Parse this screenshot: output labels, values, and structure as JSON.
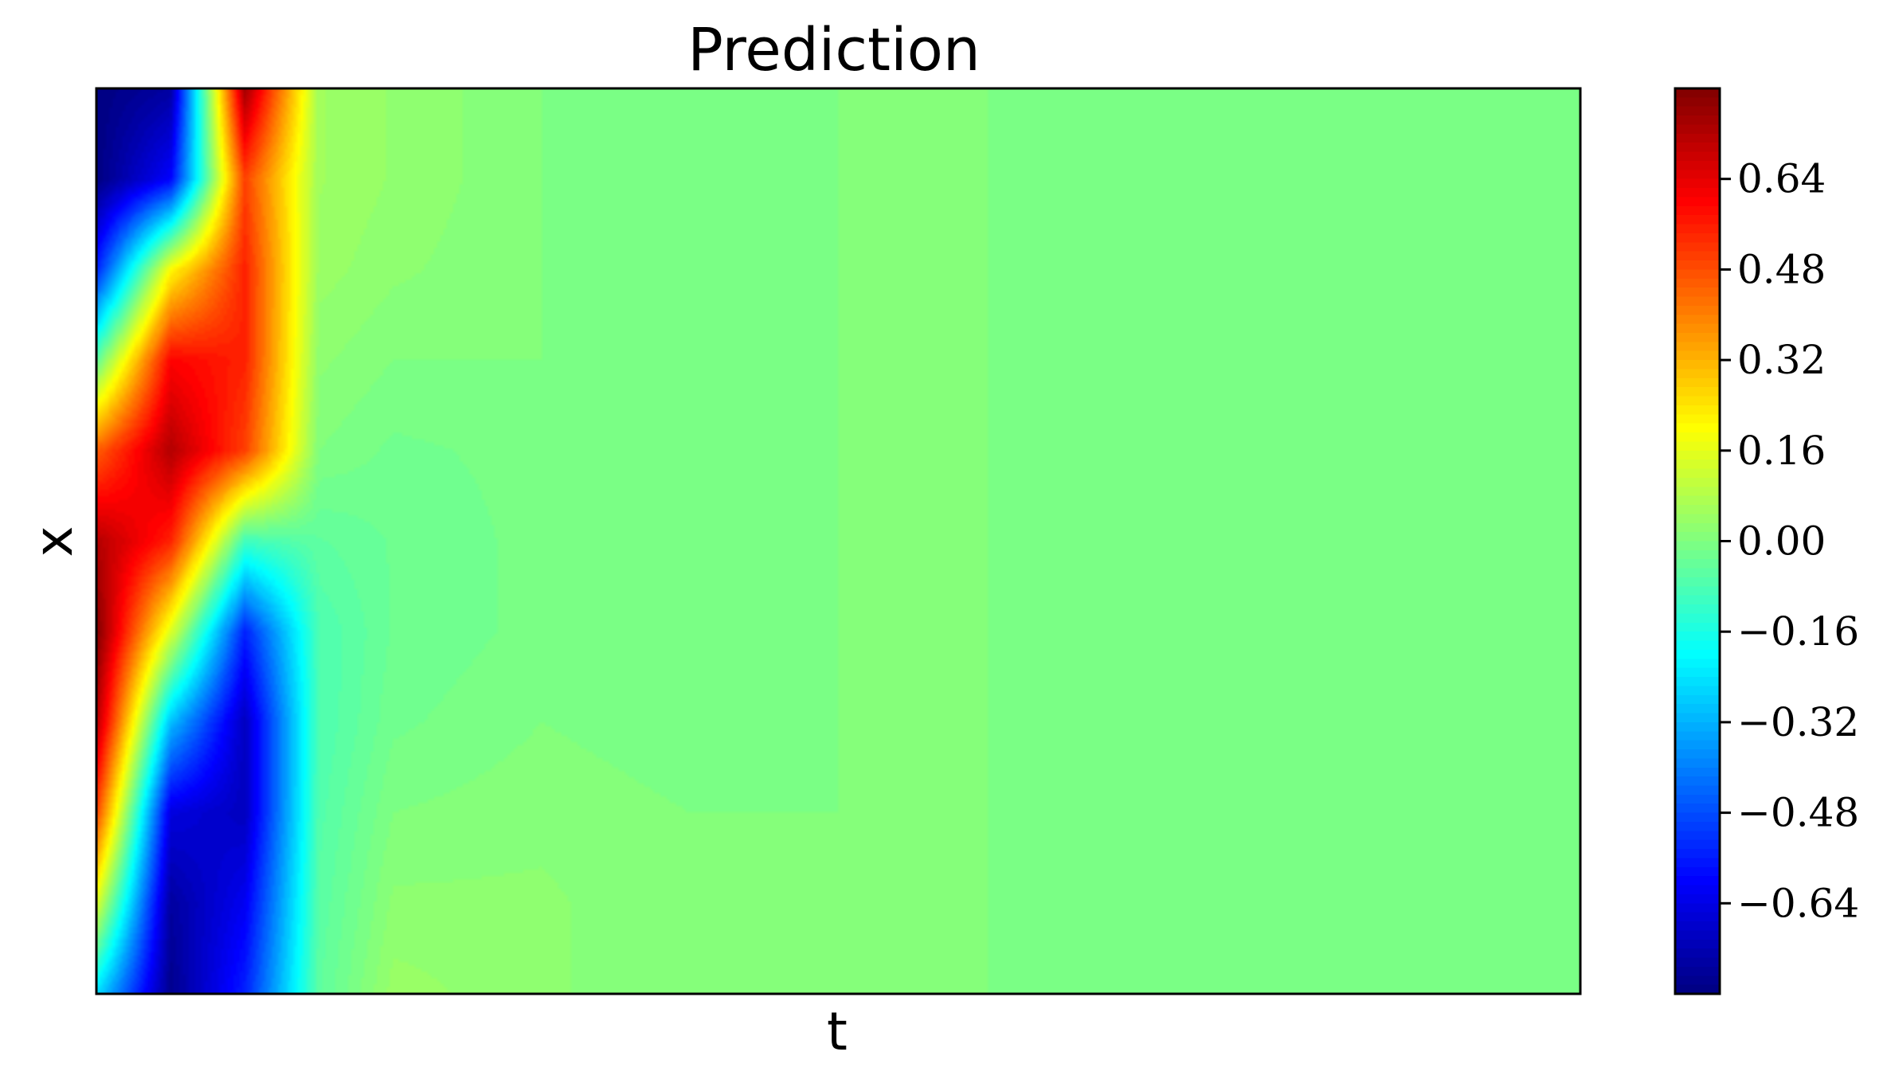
{
  "chart_data": {
    "type": "heatmap",
    "title": "Prediction",
    "xlabel": "t",
    "ylabel": "x",
    "x_ticks": [],
    "y_ticks": [],
    "colormap": "jet",
    "colorbar": {
      "range": [
        -0.8,
        0.8
      ],
      "ticks": [
        -0.64,
        -0.48,
        -0.32,
        -0.16,
        0.0,
        0.16,
        0.32,
        0.48,
        0.64
      ],
      "tick_labels": [
        "−0.64",
        "−0.48",
        "−0.32",
        "−0.16",
        "0.00",
        "0.16",
        "0.32",
        "0.48",
        "0.64"
      ]
    },
    "grid": false,
    "field": {
      "t_range": [
        0,
        1
      ],
      "x_range": [
        -1,
        1
      ],
      "t_grid": [
        0.0,
        0.05,
        0.1,
        0.15,
        0.2,
        0.3,
        0.4,
        0.5,
        0.6,
        0.7,
        0.8,
        0.9,
        1.0
      ],
      "x_grid": [
        1.0,
        0.8,
        0.6,
        0.4,
        0.2,
        0.0,
        -0.2,
        -0.4,
        -0.6,
        -0.8,
        -1.0
      ],
      "values": [
        [
          -0.8,
          -0.75,
          0.75,
          0.05,
          0.03,
          0.0,
          -0.01,
          0.0,
          0.0,
          -0.01,
          -0.01,
          -0.01,
          0.0
        ],
        [
          -0.8,
          -0.6,
          0.5,
          0.05,
          0.03,
          0.0,
          -0.01,
          0.0,
          0.0,
          -0.01,
          -0.01,
          -0.01,
          0.0
        ],
        [
          -0.55,
          0.2,
          0.55,
          0.04,
          0.02,
          0.0,
          -0.01,
          0.0,
          0.0,
          -0.01,
          -0.01,
          -0.01,
          -0.01
        ],
        [
          -0.05,
          0.6,
          0.55,
          0.02,
          0.0,
          0.0,
          -0.01,
          0.0,
          0.0,
          -0.01,
          -0.01,
          -0.01,
          -0.01
        ],
        [
          0.45,
          0.72,
          0.5,
          0.0,
          -0.02,
          -0.01,
          -0.01,
          0.0,
          0.0,
          -0.01,
          -0.01,
          -0.01,
          -0.01
        ],
        [
          0.72,
          0.55,
          -0.1,
          -0.05,
          -0.03,
          -0.01,
          -0.01,
          0.0,
          0.0,
          -0.01,
          -0.01,
          -0.01,
          0.0
        ],
        [
          0.8,
          0.15,
          -0.55,
          -0.08,
          -0.03,
          -0.01,
          -0.01,
          0.0,
          0.0,
          -0.01,
          -0.01,
          -0.01,
          0.0
        ],
        [
          0.72,
          -0.3,
          -0.7,
          -0.08,
          -0.02,
          0.0,
          -0.01,
          0.0,
          0.0,
          -0.01,
          -0.01,
          -0.01,
          0.0
        ],
        [
          0.5,
          -0.65,
          -0.7,
          -0.07,
          0.0,
          0.01,
          0.0,
          0.0,
          0.0,
          -0.01,
          -0.01,
          -0.01,
          0.0
        ],
        [
          0.15,
          -0.75,
          -0.62,
          -0.06,
          0.02,
          0.02,
          0.0,
          0.0,
          0.0,
          -0.01,
          -0.01,
          -0.01,
          0.0
        ],
        [
          -0.25,
          -0.78,
          -0.55,
          -0.05,
          0.04,
          0.02,
          0.0,
          0.0,
          0.0,
          -0.01,
          -0.01,
          -0.01,
          0.0
        ]
      ]
    }
  }
}
